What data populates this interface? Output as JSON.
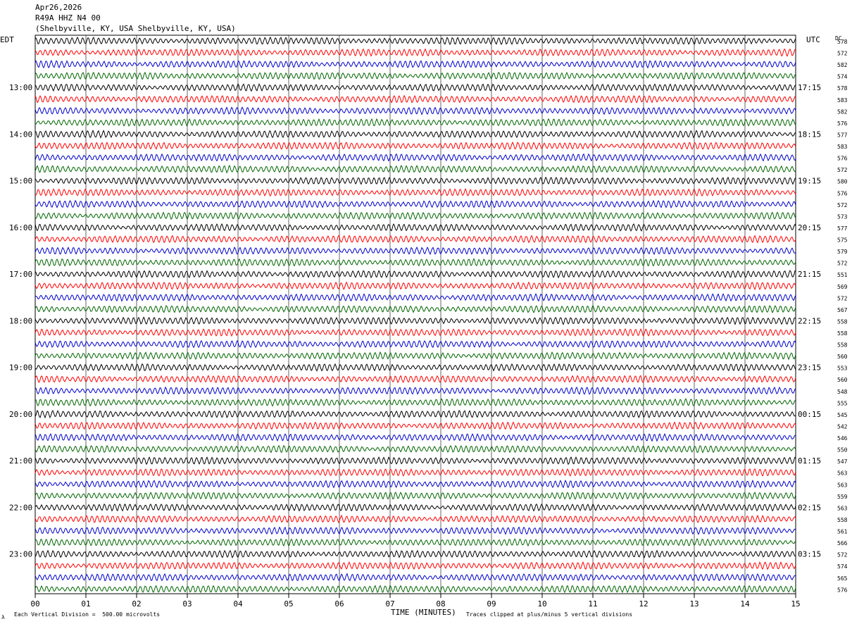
{
  "header": {
    "date": "Apr26,2026",
    "station": "R49A HHZ N4 00",
    "location": "(Shelbyville, KY, USA Shelbyville, KY, USA)"
  },
  "labels": {
    "left_timezone": "EDT",
    "right_timezone": "UTC",
    "dc_header": "DC",
    "xlabel": "TIME (MINUTES)",
    "scale_note": "Each Vertical Division =  500.00 microvolts",
    "clip_note": "Traces clipped at plus/minus 5 vertical divisions",
    "corner_mark": "λ"
  },
  "colors": {
    "trace_cycle": [
      "#000000",
      "#ff0000",
      "#0000cc",
      "#006600"
    ],
    "grid": "#000000"
  },
  "chart_data": {
    "type": "line",
    "title": "R49A HHZ N4 00",
    "xlabel": "TIME (MINUTES)",
    "xlim": [
      0,
      15
    ],
    "x_ticks": [
      "00",
      "01",
      "02",
      "03",
      "04",
      "05",
      "06",
      "07",
      "08",
      "09",
      "10",
      "11",
      "12",
      "13",
      "14",
      "15"
    ],
    "rows_per_hour": 4,
    "row_minutes": 15,
    "hours_edt": [
      "13:00",
      "14:00",
      "15:00",
      "16:00",
      "17:00",
      "18:00",
      "19:00",
      "20:00",
      "21:00",
      "22:00",
      "23:00"
    ],
    "hours_utc": [
      "17:15",
      "18:15",
      "19:15",
      "20:15",
      "21:15",
      "22:15",
      "23:15",
      "00:15",
      "01:15",
      "02:15",
      "03:15"
    ],
    "dc_offsets": [
      578,
      572,
      582,
      574,
      578,
      583,
      582,
      576,
      577,
      583,
      576,
      572,
      580,
      576,
      572,
      573,
      577,
      575,
      579,
      572,
      551,
      569,
      572,
      567,
      558,
      558,
      558,
      560,
      553,
      560,
      548,
      555,
      545,
      542,
      546,
      550,
      547,
      563,
      563,
      559,
      563,
      558,
      561,
      566,
      572,
      574,
      565,
      576
    ],
    "scale_microvolts_per_division": 500.0,
    "clip_divisions": 5
  }
}
